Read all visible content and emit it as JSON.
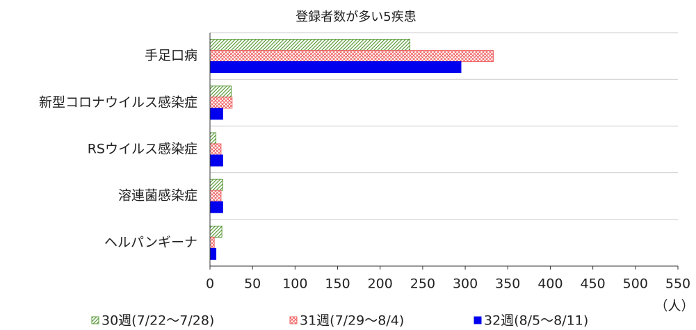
{
  "chart_data": {
    "type": "barh",
    "title": "登録者数が多い5疾患",
    "categories": [
      "手足口病",
      "新型コロナウイルス感染症",
      "RSウイルス感染症",
      "溶連菌感染症",
      "ヘルパンギーナ"
    ],
    "series": [
      {
        "name": "30週(7/22〜7/28)",
        "color": "#5a9a3a",
        "pattern": "diagonal",
        "values": [
          235,
          25,
          7,
          15,
          14
        ]
      },
      {
        "name": "31週(7/29〜8/4)",
        "color": "#f06060",
        "pattern": "cross",
        "values": [
          333,
          26,
          13,
          13,
          5
        ]
      },
      {
        "name": "32週(8/5〜8/11)",
        "color": "#0000ee",
        "pattern": "solid",
        "values": [
          295,
          15,
          15,
          15,
          7
        ]
      }
    ],
    "xlabel": "（人）",
    "xlim": [
      0,
      550
    ],
    "xticks": [
      0,
      50,
      100,
      150,
      200,
      250,
      300,
      350,
      400,
      450,
      500,
      550
    ],
    "grid": true,
    "legend": "bottom"
  }
}
